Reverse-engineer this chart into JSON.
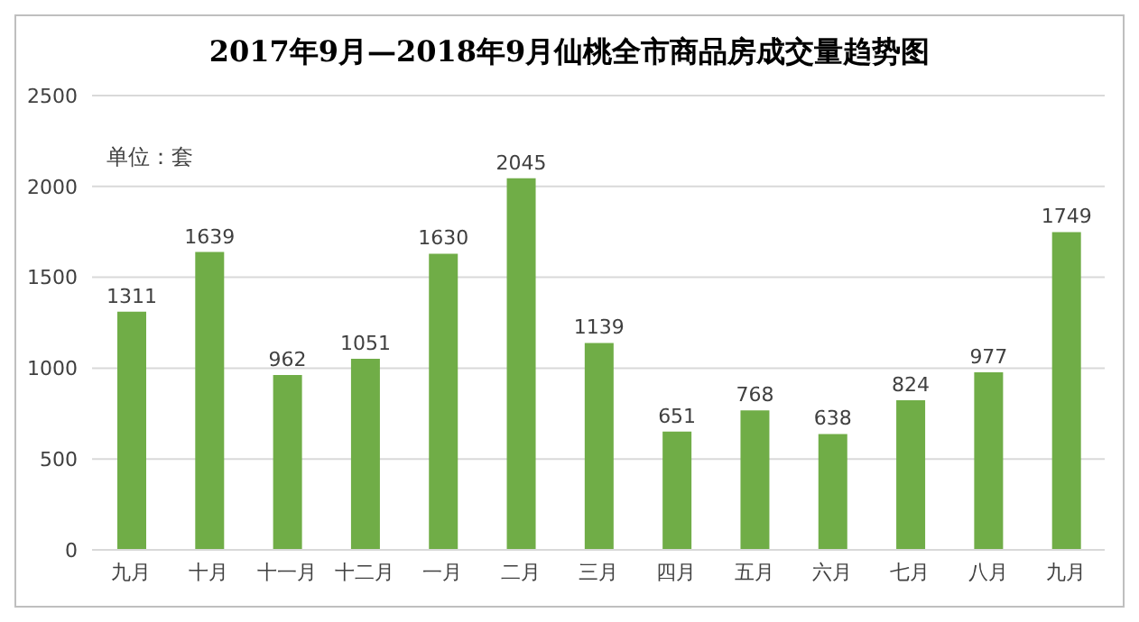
{
  "chart_data": {
    "type": "bar",
    "title": "2017年9月—2018年9月仙桃全市商品房成交量趋势图",
    "annotations": [
      "单位：套"
    ],
    "categories": [
      "九月",
      "十月",
      "十一月",
      "十二月",
      "一月",
      "二月",
      "三月",
      "四月",
      "五月",
      "六月",
      "七月",
      "八月",
      "九月"
    ],
    "values": [
      1311,
      1639,
      962,
      1051,
      1630,
      2045,
      1139,
      651,
      768,
      638,
      824,
      977,
      1749
    ],
    "color": "#70ad47",
    "ylim": [
      0,
      2500
    ],
    "yticks": [
      0,
      500,
      1000,
      1500,
      2000,
      2500
    ],
    "grid": "y",
    "data_labels": true
  }
}
